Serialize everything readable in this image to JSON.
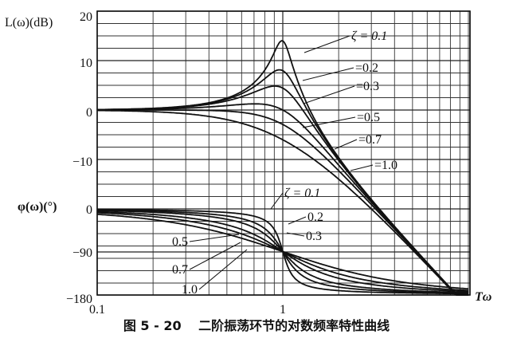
{
  "caption": "图 5 - 20　 二阶振荡环节的对数频率特性曲线",
  "chart_data": {
    "type": "line",
    "xscale": "log",
    "xlim": [
      0.1,
      10
    ],
    "x_tick_labels": [
      "0.1",
      "1"
    ],
    "x_axis_label": "Tω",
    "magnitude": {
      "ylabel": "L(ω)(dB)",
      "ylim": [
        -180,
        20
      ],
      "y_tick_labels": [
        "20",
        "10",
        "0",
        "−10"
      ],
      "series_labels": [
        "ζ = 0.1",
        "=0.2",
        "=0.3",
        "=0.5",
        "=0.7",
        "=1.0"
      ]
    },
    "phase": {
      "ylabel": "φ(ω)(°)",
      "y_tick_labels": [
        "0",
        "−90",
        "−180"
      ],
      "series_labels": [
        "ζ = 0.1",
        "0.2",
        "0.3",
        "0.5",
        "0.7",
        "1.0"
      ]
    },
    "zetas": [
      0.1,
      0.2,
      0.3,
      0.5,
      0.7,
      1.0
    ],
    "grid": true
  }
}
